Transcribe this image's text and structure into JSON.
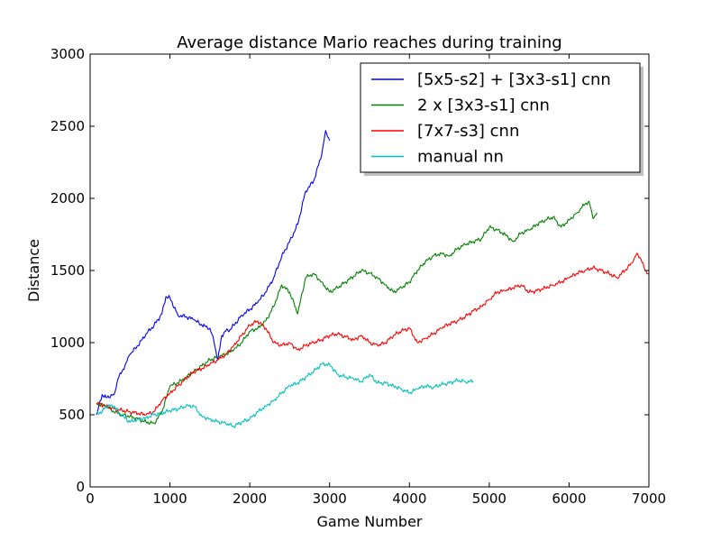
{
  "chart_data": {
    "type": "line",
    "title": "Average distance Mario reaches during training",
    "xlabel": "Game Number",
    "ylabel": "Distance",
    "xlim": [
      0,
      7000
    ],
    "ylim": [
      0,
      3000
    ],
    "xticks": [
      0,
      1000,
      2000,
      3000,
      4000,
      5000,
      6000,
      7000
    ],
    "yticks": [
      0,
      500,
      1000,
      1500,
      2000,
      2500,
      3000
    ],
    "grid": false,
    "legend_position": "top-right",
    "series": [
      {
        "name": "[5x5-s2] + [3x3-s1] cnn",
        "color": "#0000ff",
        "x": [
          80,
          150,
          200,
          300,
          350,
          400,
          450,
          500,
          600,
          700,
          800,
          900,
          950,
          1000,
          1100,
          1200,
          1300,
          1400,
          1500,
          1550,
          1600,
          1650,
          1700,
          1750,
          1800,
          1900,
          2000,
          2100,
          2200,
          2300,
          2400,
          2500,
          2600,
          2700,
          2800,
          2900,
          2950,
          3000
        ],
        "y": [
          500,
          640,
          620,
          640,
          750,
          800,
          860,
          920,
          980,
          1060,
          1120,
          1200,
          1320,
          1310,
          1190,
          1180,
          1160,
          1120,
          1100,
          1010,
          880,
          1050,
          1080,
          1090,
          1120,
          1190,
          1230,
          1280,
          1350,
          1450,
          1600,
          1700,
          1820,
          2050,
          2120,
          2300,
          2470,
          2400
        ]
      },
      {
        "name": "2 x [3x3-s1] cnn",
        "color": "#008000",
        "x": [
          80,
          200,
          300,
          400,
          500,
          600,
          700,
          800,
          900,
          1000,
          1100,
          1200,
          1300,
          1400,
          1500,
          1600,
          1700,
          1800,
          1900,
          2000,
          2100,
          2200,
          2300,
          2400,
          2500,
          2600,
          2700,
          2800,
          2900,
          3000,
          3100,
          3200,
          3300,
          3400,
          3500,
          3600,
          3700,
          3800,
          3900,
          4000,
          4100,
          4200,
          4300,
          4400,
          4500,
          4600,
          4700,
          4800,
          4900,
          5000,
          5100,
          5200,
          5300,
          5400,
          5500,
          5600,
          5700,
          5800,
          5900,
          6000,
          6100,
          6150,
          6200,
          6250,
          6300,
          6350
        ],
        "y": [
          580,
          560,
          520,
          500,
          490,
          470,
          450,
          440,
          520,
          700,
          720,
          760,
          800,
          840,
          880,
          900,
          920,
          950,
          1000,
          1080,
          1100,
          1150,
          1250,
          1400,
          1350,
          1200,
          1450,
          1480,
          1420,
          1350,
          1380,
          1420,
          1460,
          1500,
          1480,
          1450,
          1400,
          1350,
          1380,
          1420,
          1500,
          1560,
          1600,
          1620,
          1600,
          1650,
          1680,
          1700,
          1720,
          1800,
          1780,
          1750,
          1700,
          1760,
          1780,
          1820,
          1850,
          1870,
          1800,
          1850,
          1900,
          1930,
          1960,
          1980,
          1860,
          1900
        ]
      },
      {
        "name": "[7x7-s3] cnn",
        "color": "#ff0000",
        "x": [
          80,
          200,
          300,
          400,
          500,
          600,
          700,
          800,
          900,
          1000,
          1100,
          1200,
          1300,
          1400,
          1500,
          1600,
          1700,
          1800,
          1900,
          2000,
          2100,
          2200,
          2300,
          2400,
          2500,
          2600,
          2700,
          2800,
          2900,
          3000,
          3100,
          3200,
          3300,
          3400,
          3500,
          3600,
          3700,
          3800,
          3900,
          4000,
          4100,
          4200,
          4300,
          4400,
          4500,
          4600,
          4700,
          4800,
          4900,
          5000,
          5100,
          5200,
          5300,
          5400,
          5500,
          5600,
          5700,
          5800,
          5900,
          6000,
          6100,
          6200,
          6300,
          6400,
          6500,
          6600,
          6700,
          6800,
          6850,
          6900,
          6950,
          7000
        ],
        "y": [
          580,
          560,
          540,
          530,
          520,
          510,
          500,
          520,
          600,
          650,
          700,
          750,
          800,
          820,
          850,
          880,
          920,
          980,
          1050,
          1120,
          1150,
          1100,
          1000,
          980,
          1000,
          950,
          980,
          1000,
          1020,
          1050,
          1060,
          1040,
          1020,
          1050,
          1000,
          980,
          1000,
          1050,
          1080,
          1100,
          1000,
          1030,
          1060,
          1100,
          1130,
          1150,
          1180,
          1220,
          1250,
          1300,
          1350,
          1360,
          1380,
          1400,
          1350,
          1360,
          1380,
          1400,
          1420,
          1450,
          1480,
          1500,
          1520,
          1500,
          1480,
          1450,
          1500,
          1560,
          1620,
          1580,
          1500,
          1480
        ]
      },
      {
        "name": "manual nn",
        "color": "#00bfbf",
        "x": [
          80,
          150,
          200,
          300,
          400,
          500,
          600,
          700,
          800,
          900,
          1000,
          1100,
          1200,
          1300,
          1400,
          1500,
          1600,
          1700,
          1800,
          1900,
          2000,
          2100,
          2200,
          2300,
          2400,
          2500,
          2600,
          2700,
          2800,
          2900,
          3000,
          3100,
          3200,
          3300,
          3400,
          3500,
          3600,
          3700,
          3800,
          3900,
          4000,
          4100,
          4200,
          4300,
          4400,
          4500,
          4600,
          4700,
          4800
        ],
        "y": [
          510,
          520,
          560,
          560,
          490,
          450,
          470,
          480,
          500,
          510,
          530,
          540,
          560,
          560,
          490,
          470,
          450,
          440,
          420,
          450,
          470,
          520,
          560,
          600,
          650,
          700,
          720,
          760,
          800,
          850,
          850,
          780,
          760,
          750,
          730,
          780,
          720,
          720,
          700,
          680,
          650,
          680,
          700,
          690,
          710,
          720,
          740,
          730,
          730
        ]
      }
    ]
  }
}
